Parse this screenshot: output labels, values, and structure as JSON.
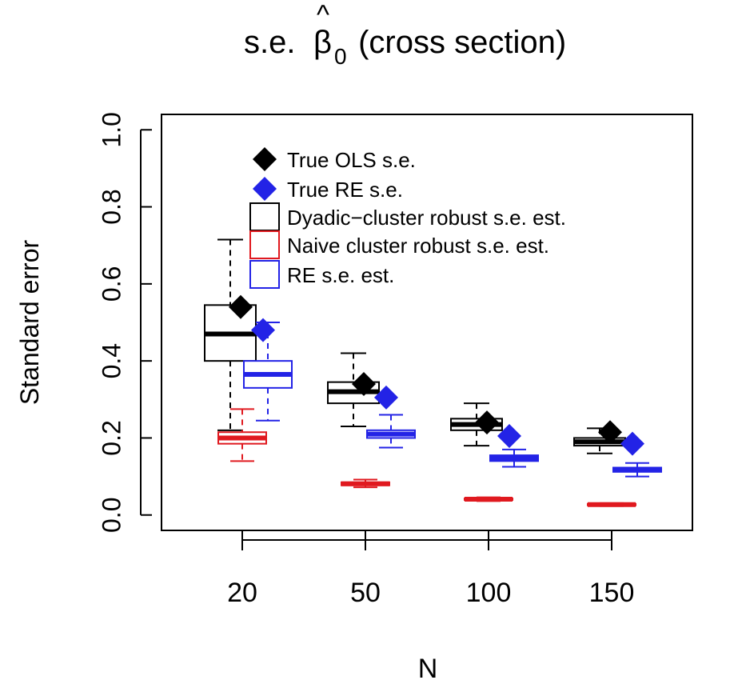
{
  "chart_data": {
    "type": "boxplot",
    "title": {
      "prefix": "s.e. ",
      "symbol": "β",
      "hat": "^",
      "subscript": "0",
      "suffix": " (cross section)"
    },
    "xlabel": "N",
    "ylabel": "Standard error",
    "categories": [
      "20",
      "50",
      "100",
      "150"
    ],
    "ylim": [
      -0.04,
      1.04
    ],
    "yticks": [
      "0.0",
      "0.2",
      "0.4",
      "0.6",
      "0.8",
      "1.0"
    ],
    "grid": false,
    "legend_position": "top-left inside plot",
    "colors": {
      "dyadic": "#000000",
      "naive": "#e0191f",
      "re": "#2323e6",
      "re_point": "#2323e6"
    },
    "legend": [
      {
        "label": "True OLS s.e.",
        "symbol": "diamond",
        "color": "#000000"
      },
      {
        "label": "True RE s.e.",
        "symbol": "diamond",
        "color": "#2323e6"
      },
      {
        "label": "Dyadic−cluster robust s.e. est.",
        "symbol": "box",
        "color": "#000000"
      },
      {
        "label": "Naive cluster robust s.e. est.",
        "symbol": "box",
        "color": "#e0191f"
      },
      {
        "label": "RE s.e. est.",
        "symbol": "box",
        "color": "#2323e6"
      }
    ],
    "series": [
      {
        "name": "Dyadic−cluster robust s.e. est.",
        "color": "#000000",
        "boxes": [
          {
            "min": 0.22,
            "q1": 0.4,
            "median": 0.47,
            "q3": 0.545,
            "max": 0.715
          },
          {
            "min": 0.23,
            "q1": 0.29,
            "median": 0.32,
            "q3": 0.345,
            "max": 0.42
          },
          {
            "min": 0.18,
            "q1": 0.22,
            "median": 0.235,
            "q3": 0.25,
            "max": 0.29
          },
          {
            "min": 0.16,
            "q1": 0.18,
            "median": 0.19,
            "q3": 0.2,
            "max": 0.225
          }
        ]
      },
      {
        "name": "Naive cluster robust s.e. est.",
        "color": "#e0191f",
        "boxes": [
          {
            "min": 0.14,
            "q1": 0.185,
            "median": 0.2,
            "q3": 0.215,
            "max": 0.275
          },
          {
            "min": 0.072,
            "q1": 0.077,
            "median": 0.081,
            "q3": 0.085,
            "max": 0.092
          },
          {
            "min": 0.036,
            "q1": 0.039,
            "median": 0.041,
            "q3": 0.043,
            "max": 0.046
          },
          {
            "min": 0.023,
            "q1": 0.025,
            "median": 0.027,
            "q3": 0.029,
            "max": 0.031
          }
        ]
      },
      {
        "name": "RE s.e. est.",
        "color": "#2323e6",
        "boxes": [
          {
            "min": 0.245,
            "q1": 0.33,
            "median": 0.365,
            "q3": 0.4,
            "max": 0.5
          },
          {
            "min": 0.175,
            "q1": 0.2,
            "median": 0.21,
            "q3": 0.22,
            "max": 0.26
          },
          {
            "min": 0.125,
            "q1": 0.14,
            "median": 0.147,
            "q3": 0.155,
            "max": 0.17
          },
          {
            "min": 0.1,
            "q1": 0.112,
            "median": 0.117,
            "q3": 0.123,
            "max": 0.135
          }
        ]
      }
    ],
    "points": [
      {
        "name": "True OLS s.e.",
        "color": "#000000",
        "values": [
          0.54,
          0.34,
          0.24,
          0.215
        ]
      },
      {
        "name": "True RE s.e.",
        "color": "#2323e6",
        "values": [
          0.48,
          0.305,
          0.205,
          0.185
        ]
      }
    ]
  }
}
